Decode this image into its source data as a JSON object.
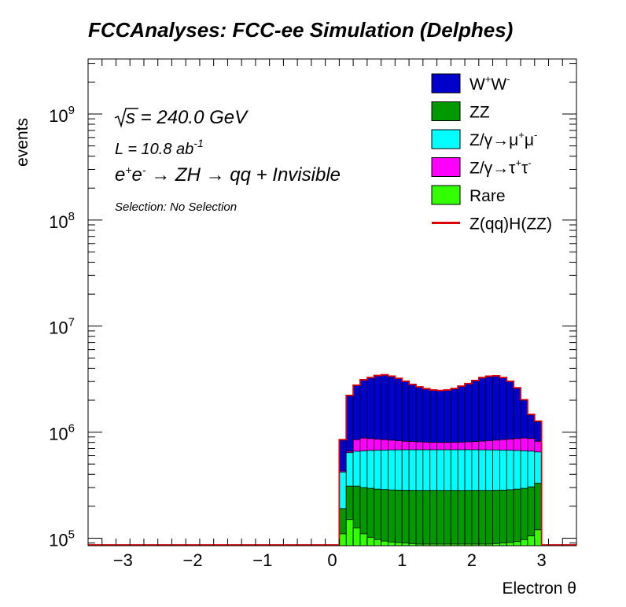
{
  "title": "FCCAnalyses: FCC-ee Simulation (Delphes)",
  "annotations": {
    "energy_sqrt": "√s",
    "energy_rest": " = 240.0 GeV",
    "lumi_base": "L = 10.8 ab",
    "lumi_exp": "-1",
    "process_e": "e",
    "process_ep": "+",
    "process_e2": "e",
    "process_em": "-",
    "process_rest": " → ZH → qq + Invisible",
    "selection": "Selection: No Selection"
  },
  "legend": [
    {
      "label_base": "W",
      "sup1": "+",
      "mid": "W",
      "sup2": "-",
      "color": "#0000cc",
      "kind": "box"
    },
    {
      "label_base": "ZZ",
      "color": "#009900",
      "kind": "box"
    },
    {
      "label_base": "Z/γ→μ",
      "sup1": "+",
      "mid": "μ",
      "sup2": "-",
      "color": "#00ffff",
      "kind": "box"
    },
    {
      "label_base": "Z/γ→τ",
      "sup1": "+",
      "mid": "τ",
      "sup2": "-",
      "color": "#ff00ff",
      "kind": "box"
    },
    {
      "label_base": "Rare",
      "color": "#33ff00",
      "kind": "box"
    },
    {
      "label_base": "Z(qq)H(ZZ)",
      "color": "#dd0000",
      "kind": "line"
    }
  ],
  "chart_data": {
    "type": "area",
    "xlabel": "Electron θ",
    "ylabel": "events",
    "xlim": [
      -3.5,
      3.5
    ],
    "ylim": [
      85000,
      3300000000
    ],
    "log_y": true,
    "x_ticks": [
      "−3",
      "−2",
      "−1",
      "0",
      "1",
      "2",
      "3"
    ],
    "y_ticks": [
      {
        "base": "10",
        "exp": "5"
      },
      {
        "base": "10",
        "exp": "6"
      },
      {
        "base": "10",
        "exp": "7"
      },
      {
        "base": "10",
        "exp": "8"
      },
      {
        "base": "10",
        "exp": "9"
      }
    ],
    "bin_width": 0.1,
    "x_bin_start": 0.1,
    "series": [
      {
        "name": "Rare",
        "color": "#33ff00",
        "values": [
          110000,
          150000,
          125000,
          110000,
          102000,
          97000,
          94000,
          92000,
          91000,
          90000,
          89000,
          88000,
          88000,
          88000,
          88000,
          88000,
          88000,
          88000,
          88000,
          88000,
          88000,
          88000,
          89000,
          90000,
          91000,
          93000,
          97000,
          105000,
          120000
        ]
      },
      {
        "name": "ZZ",
        "color": "#009900",
        "values": [
          190000,
          310000,
          310000,
          300000,
          295000,
          290000,
          287000,
          285000,
          284000,
          283000,
          282000,
          282000,
          282000,
          282000,
          282000,
          282000,
          282000,
          282000,
          282000,
          282000,
          282000,
          282000,
          283000,
          284000,
          286000,
          290000,
          295000,
          305000,
          330000
        ]
      },
      {
        "name": "Z/γ→μ+μ-",
        "color": "#00ffff",
        "values": [
          420000,
          640000,
          660000,
          665000,
          672000,
          675000,
          678000,
          680000,
          681000,
          682000,
          682000,
          682000,
          682000,
          682000,
          682000,
          682000,
          682000,
          682000,
          682000,
          682000,
          681000,
          680000,
          679000,
          677000,
          675000,
          672000,
          667000,
          662000,
          650000
        ]
      },
      {
        "name": "Z/γ→τ+τ-",
        "color": "#ff00ff",
        "values": [
          430000,
          660000,
          850000,
          880000,
          870000,
          860000,
          850000,
          840000,
          830000,
          820000,
          815000,
          810000,
          805000,
          802000,
          800000,
          800000,
          802000,
          805000,
          810000,
          815000,
          822000,
          830000,
          840000,
          850000,
          860000,
          870000,
          880000,
          870000,
          820000
        ]
      },
      {
        "name": "W+W-",
        "color": "#0000cc",
        "values": [
          840000,
          2200000,
          2750000,
          3100000,
          3250000,
          3400000,
          3450000,
          3350000,
          3200000,
          3000000,
          2800000,
          2650000,
          2550000,
          2480000,
          2450000,
          2480000,
          2560000,
          2700000,
          2850000,
          3050000,
          3250000,
          3350000,
          3380000,
          3250000,
          3000000,
          2600000,
          2000000,
          1450000,
          1250000
        ]
      },
      {
        "name": "Z(qq)H(ZZ)",
        "color": "#dd0000",
        "line": true,
        "values": [
          850000,
          2220000,
          2770000,
          3120000,
          3270000,
          3420000,
          3470000,
          3370000,
          3220000,
          3020000,
          2820000,
          2670000,
          2570000,
          2500000,
          2470000,
          2500000,
          2580000,
          2720000,
          2870000,
          3070000,
          3270000,
          3370000,
          3400000,
          3270000,
          3020000,
          2620000,
          2020000,
          1470000,
          1270000
        ]
      }
    ]
  }
}
